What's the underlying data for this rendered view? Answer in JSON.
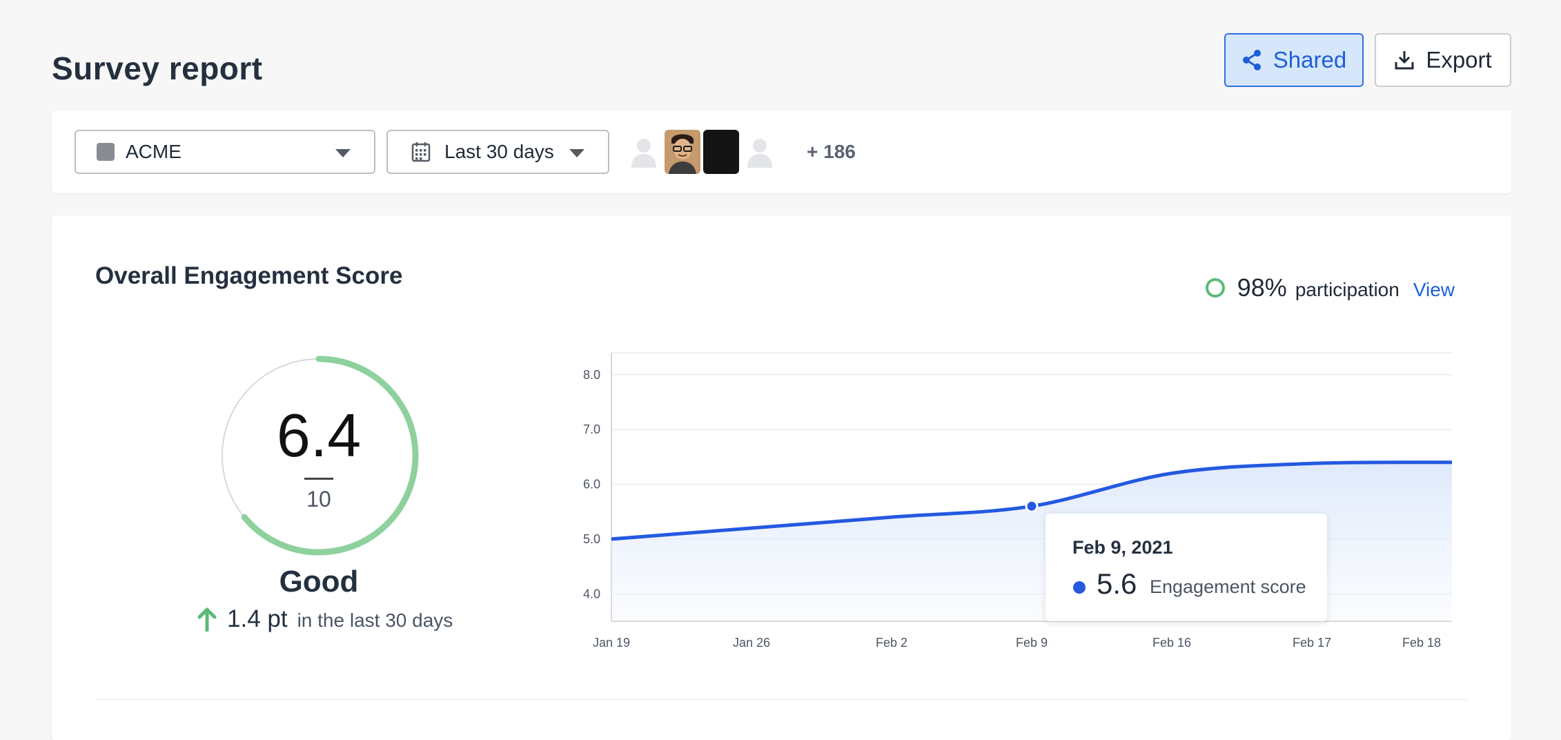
{
  "page": {
    "title": "Survey report"
  },
  "header": {
    "shared_label": "Shared",
    "export_label": "Export",
    "icons": [
      "share-icon",
      "download-icon"
    ]
  },
  "filters": {
    "org_select": {
      "value": "ACME"
    },
    "date_select": {
      "value": "Last 30 days"
    },
    "avatars_more": "+ 186"
  },
  "engagement": {
    "title": "Overall Engagement Score",
    "participation_value": "98%",
    "participation_label": "participation",
    "view_link": "View",
    "score": "6.4",
    "score_fraction": 0.64,
    "score_max": "10",
    "rating": "Good",
    "delta_value": "1.4 pt",
    "delta_label": "in the last 30 days",
    "tooltip": {
      "date": "Feb 9, 2021",
      "value": "5.6",
      "label": "Engagement score"
    }
  },
  "colors": {
    "accent": "#2459e0",
    "gauge": "#8fd19e",
    "positive": "#5cb97a"
  },
  "chart_data": {
    "type": "area",
    "categories": [
      "Jan 19",
      "Jan 26",
      "Feb 2",
      "Feb 9",
      "Feb 16",
      "Feb 17",
      "Feb 18"
    ],
    "series": [
      {
        "values": [
          5.0,
          5.2,
          5.4,
          5.6,
          6.2,
          6.38,
          6.4
        ]
      }
    ],
    "yticks": [
      "8.0",
      "7.0",
      "6.0",
      "5.0",
      "4.0"
    ],
    "ylim": [
      3.5,
      8.4
    ],
    "grid": true,
    "highlight_index": 3
  }
}
